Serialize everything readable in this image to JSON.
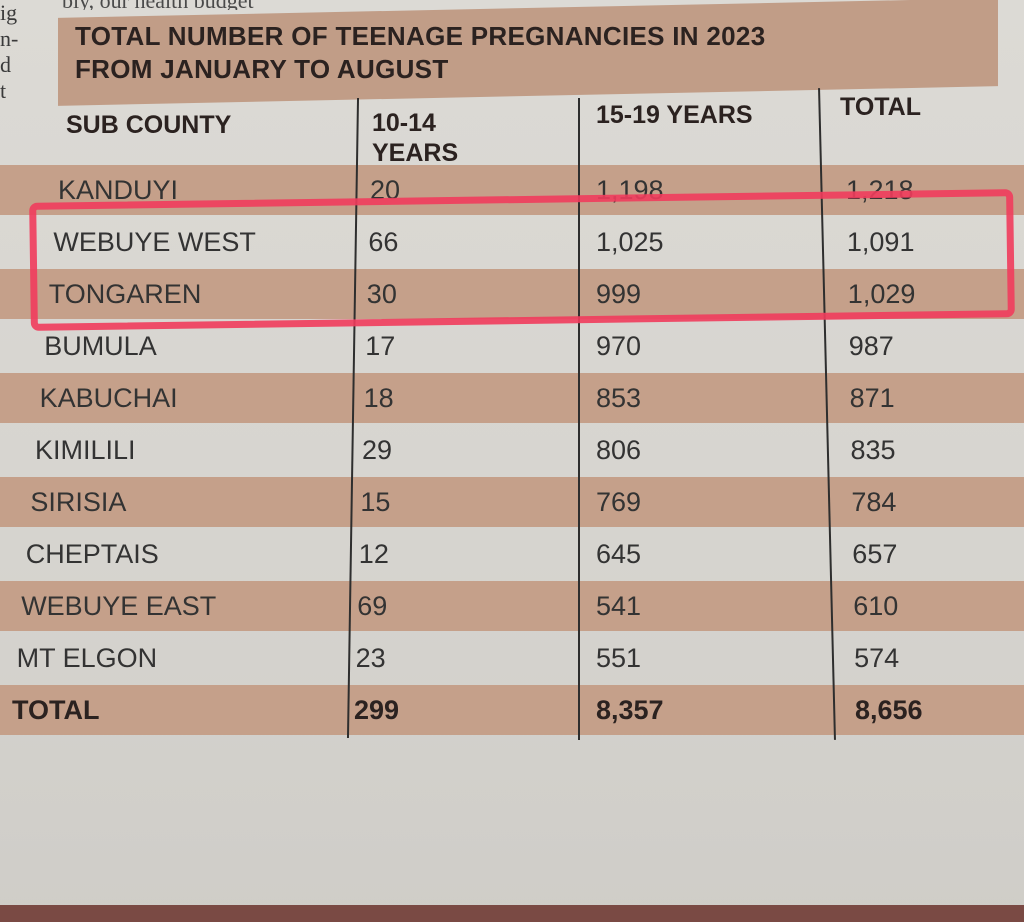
{
  "fragments": {
    "margin": "ig\nn-\nd\nt",
    "top_line": "bly, our health budget"
  },
  "table": {
    "title_line1": "TOTAL NUMBER OF TEENAGE PREGNANCIES IN 2023",
    "title_line2": "FROM JANUARY TO AUGUST",
    "headers": {
      "subcounty": "SUB COUNTY",
      "age_10_14_line1": "10-14",
      "age_10_14_line2": "YEARS",
      "age_15_19": "15-19 YEARS",
      "total": "TOTAL"
    },
    "rows": [
      {
        "name": "KANDUYI",
        "a": "20",
        "b": "1,198",
        "t": "1,218"
      },
      {
        "name": "WEBUYE WEST",
        "a": "66",
        "b": "1,025",
        "t": "1,091"
      },
      {
        "name": "TONGAREN",
        "a": "30",
        "b": "999",
        "t": "1,029"
      },
      {
        "name": "BUMULA",
        "a": "17",
        "b": "970",
        "t": "987"
      },
      {
        "name": "KABUCHAI",
        "a": "18",
        "b": "853",
        "t": "871"
      },
      {
        "name": "KIMILILI",
        "a": "29",
        "b": "806",
        "t": "835"
      },
      {
        "name": "SIRISIA",
        "a": "15",
        "b": "769",
        "t": "784"
      },
      {
        "name": "CHEPTAIS",
        "a": "12",
        "b": "645",
        "t": "657"
      },
      {
        "name": "WEBUYE EAST",
        "a": "69",
        "b": "541",
        "t": "610"
      },
      {
        "name": "MT ELGON",
        "a": "23",
        "b": "551",
        "t": "574"
      }
    ],
    "total_row": {
      "name": "TOTAL",
      "a": "299",
      "b": "8,357",
      "t": "8,656"
    }
  },
  "colors": {
    "band": "#c19d87",
    "highlight": "#f03c5c"
  }
}
